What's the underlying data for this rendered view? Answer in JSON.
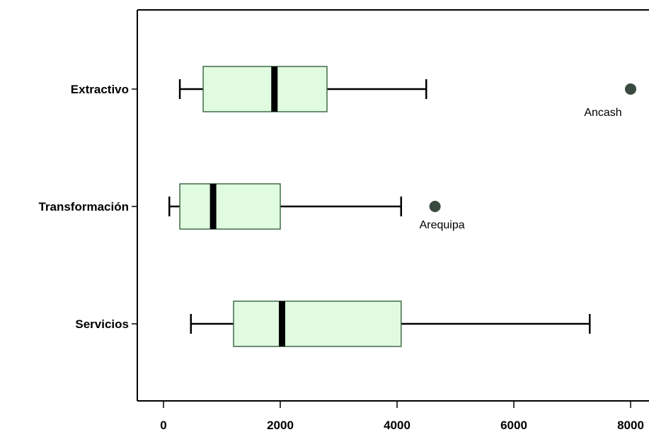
{
  "chart_data": {
    "type": "boxplot",
    "orientation": "horizontal",
    "title": "",
    "xlabel": "",
    "ylabel": "",
    "xlim": [
      -450,
      8300
    ],
    "x_ticks": [
      0,
      2000,
      4000,
      6000,
      8000
    ],
    "x_tick_labels": [
      "0",
      "2000",
      "4000",
      "6000",
      "8000"
    ],
    "grid": false,
    "categories": [
      "Extractivo",
      "Transformación",
      "Servicios"
    ],
    "boxes": [
      {
        "category": "Extractivo",
        "whisker_low": 280,
        "q1": 680,
        "median": 1900,
        "q3": 2800,
        "whisker_high": 4500,
        "outliers": [
          {
            "value": 8000,
            "label": "Ancash"
          }
        ]
      },
      {
        "category": "Transformación",
        "whisker_low": 100,
        "q1": 280,
        "median": 850,
        "q3": 2000,
        "whisker_high": 4070,
        "outliers": [
          {
            "value": 4650,
            "label": "Arequipa"
          }
        ]
      },
      {
        "category": "Servicios",
        "whisker_low": 470,
        "q1": 1200,
        "median": 2030,
        "q3": 4070,
        "whisker_high": 7300,
        "outliers": []
      }
    ],
    "colors": {
      "box_fill": "#e1fbe1",
      "box_stroke": "#3f6b47",
      "median": "#000000",
      "outlier": "#3b4a3f",
      "axis": "#000000"
    }
  }
}
